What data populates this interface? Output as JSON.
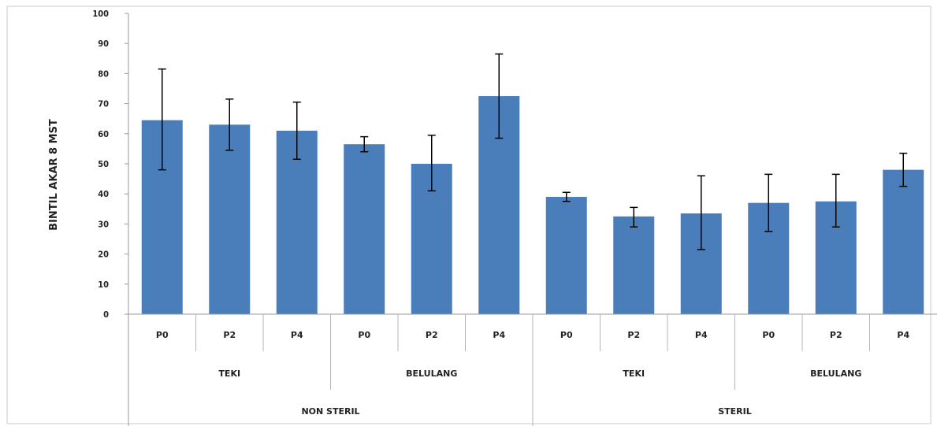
{
  "chart_data": {
    "type": "bar",
    "ylabel": "BINTIL AKAR 8 MST",
    "ylim": [
      0,
      100
    ],
    "yticks": [
      0,
      10,
      20,
      30,
      40,
      50,
      60,
      70,
      80,
      90,
      100
    ],
    "bar_color": "#4a7ebb",
    "error_color": "#000000",
    "grid": false,
    "categories": [
      "P0",
      "P2",
      "P4",
      "P0",
      "P2",
      "P4",
      "P0",
      "P2",
      "P4",
      "P0",
      "P2",
      "P4"
    ],
    "values": [
      64.5,
      63,
      61,
      56.5,
      50,
      72.5,
      39,
      32.5,
      33.5,
      37,
      37.5,
      48
    ],
    "error_low": [
      48,
      54.5,
      51.5,
      54,
      41,
      58.5,
      37.5,
      29,
      21.5,
      27.5,
      29,
      42.5
    ],
    "error_high": [
      81.5,
      71.5,
      70.5,
      59,
      59.5,
      86.5,
      40.5,
      35.5,
      46,
      46.5,
      46.5,
      53.5
    ],
    "group_level_2": [
      "TEKI",
      "BELULANG",
      "TEKI",
      "BELULANG"
    ],
    "group_level_3": [
      "NON STERIL",
      "STERIL"
    ]
  }
}
